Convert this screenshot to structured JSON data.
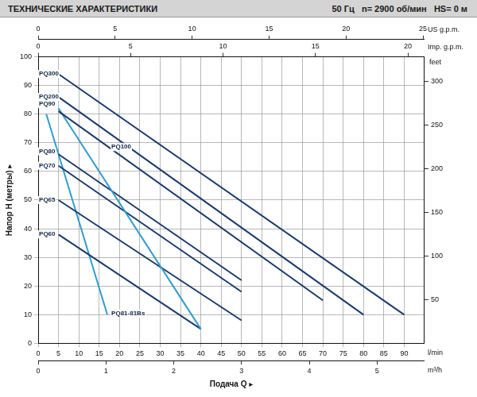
{
  "chart_data": {
    "type": "line",
    "title": "ТЕХНИЧЕСКИЕ ХАРАКТЕРИСТИКИ",
    "subtitle": "50 Гц   n= 2900 об/мин   HS= 0 м",
    "x_label": "Подача Q ▸",
    "x_unit": "l/min",
    "y_label": "Напор H (метры) ▸",
    "y2_label": "feet",
    "xlim": [
      0,
      95
    ],
    "xticks": [
      0,
      5,
      10,
      15,
      20,
      25,
      30,
      35,
      40,
      45,
      50,
      55,
      60,
      65,
      70,
      75,
      80,
      85,
      90
    ],
    "ylim": [
      0,
      100
    ],
    "yticks": [
      0,
      10,
      20,
      30,
      40,
      50,
      60,
      70,
      80,
      90,
      100
    ],
    "y2lim": [
      0,
      328.1
    ],
    "y2ticks": [
      50,
      100,
      150,
      200,
      250,
      300
    ],
    "top_axes": [
      {
        "label": "US g.p.m.",
        "lim": [
          0,
          25.1
        ],
        "ticks": [
          0,
          5,
          10,
          15,
          20,
          25
        ]
      },
      {
        "label": "Imp. g.p.m.",
        "lim": [
          0,
          20.9
        ],
        "ticks": [
          0,
          5,
          10,
          15,
          20
        ]
      }
    ],
    "bottom_axes": [
      {
        "label": "m³/h",
        "lim": [
          0,
          5.7
        ],
        "ticks": [
          0,
          1,
          2,
          3,
          4,
          5
        ]
      }
    ],
    "grid": true,
    "series": [
      {
        "name": "PQ300",
        "color": "#1b3a6b",
        "x": [
          5,
          90
        ],
        "values": [
          94,
          10
        ],
        "label_at": [
          0.2,
          94
        ]
      },
      {
        "name": "PQ200",
        "color": "#1b3a6b",
        "x": [
          5,
          80
        ],
        "values": [
          86,
          10
        ],
        "label_at": [
          0.2,
          86
        ]
      },
      {
        "name": "PQ100",
        "color": "#1b3a6b",
        "x": [
          5,
          70
        ],
        "values": [
          81,
          15
        ],
        "label_at": [
          18,
          68.5
        ]
      },
      {
        "name": "PQ90",
        "color": "#2f9ccf",
        "x": [
          5,
          40
        ],
        "values": [
          82,
          5
        ],
        "label_at": [
          0.2,
          83.5
        ]
      },
      {
        "name": "PQ80",
        "color": "#1b3a6b",
        "x": [
          5,
          50
        ],
        "values": [
          66,
          22
        ],
        "label_at": [
          0.2,
          67
        ]
      },
      {
        "name": "PQ70",
        "color": "#1b3a6b",
        "x": [
          5,
          50
        ],
        "values": [
          62,
          18
        ],
        "label_at": [
          0.2,
          62
        ]
      },
      {
        "name": "PQ65",
        "color": "#1b3a6b",
        "x": [
          5,
          50
        ],
        "values": [
          50,
          8
        ],
        "label_at": [
          0.2,
          50
        ]
      },
      {
        "name": "PQ60",
        "color": "#1b3a6b",
        "x": [
          5,
          40
        ],
        "values": [
          38,
          5
        ],
        "label_at": [
          0.2,
          38
        ]
      },
      {
        "name": "PQ81-81Bs",
        "color": "#2f9ccf",
        "x": [
          2,
          17
        ],
        "values": [
          80,
          10
        ],
        "label_at": [
          18,
          10.5
        ]
      }
    ]
  }
}
